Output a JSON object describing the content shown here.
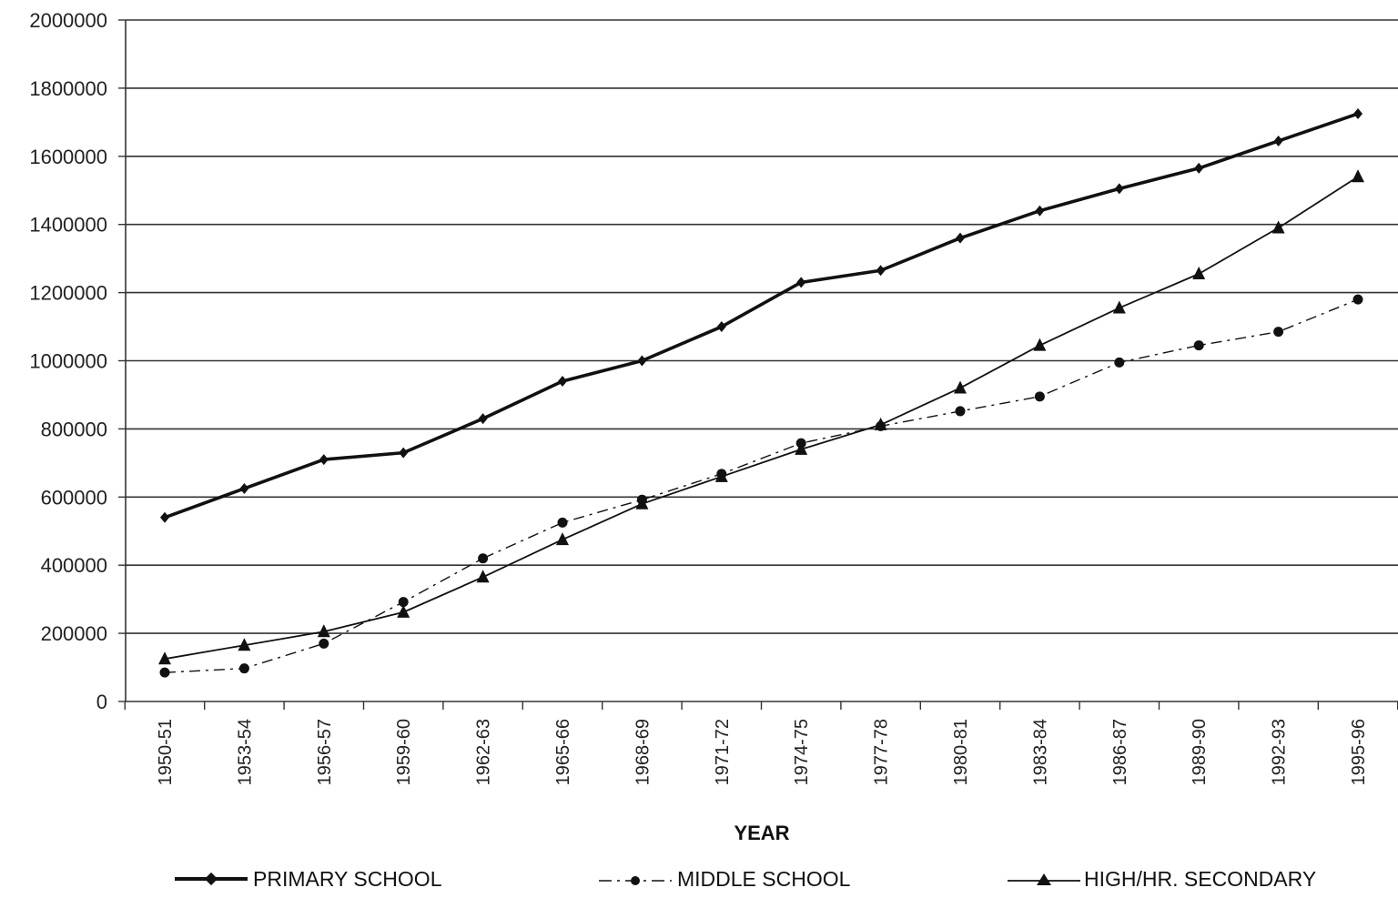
{
  "chart_data": {
    "type": "line",
    "title": "",
    "xlabel": "YEAR",
    "ylabel": "",
    "ylim": [
      0,
      2000000
    ],
    "yticks": [
      "0",
      "200000",
      "400000",
      "600000",
      "800000",
      "1000000",
      "1200000",
      "1400000",
      "1600000",
      "1800000",
      "2000000"
    ],
    "grid": true,
    "legend_position": "bottom",
    "categories": [
      "1950-51",
      "1953-54",
      "1956-57",
      "1959-60",
      "1962-63",
      "1965-66",
      "1968-69",
      "1971-72",
      "1974-75",
      "1977-78",
      "1980-81",
      "1983-84",
      "1986-87",
      "1989-90",
      "1992-93",
      "1995-96"
    ],
    "series": [
      {
        "name": "PRIMARY SCHOOL",
        "marker": "diamond",
        "line_style": "solid-thick",
        "color": "#111111",
        "values": [
          540000,
          625000,
          710000,
          730000,
          830000,
          940000,
          1000000,
          1100000,
          1230000,
          1265000,
          1360000,
          1440000,
          1505000,
          1565000,
          1645000,
          1725000
        ]
      },
      {
        "name": "MIDDLE SCHOOL",
        "marker": "circle",
        "line_style": "dash-dot",
        "color": "#111111",
        "values": [
          85000,
          97000,
          170000,
          292000,
          420000,
          525000,
          592000,
          668000,
          758000,
          808000,
          852000,
          895000,
          995000,
          1045000,
          1085000,
          1180000
        ]
      },
      {
        "name": "HIGH/HR. SECONDARY",
        "marker": "triangle",
        "line_style": "solid-thin",
        "color": "#111111",
        "values": [
          125000,
          165000,
          205000,
          262000,
          365000,
          475000,
          580000,
          660000,
          740000,
          812000,
          920000,
          1045000,
          1155000,
          1255000,
          1390000,
          1540000
        ]
      }
    ]
  },
  "legend": {
    "primary": "PRIMARY SCHOOL",
    "middle": "MIDDLE SCHOOL",
    "high": "HIGH/HR. SECONDARY"
  }
}
